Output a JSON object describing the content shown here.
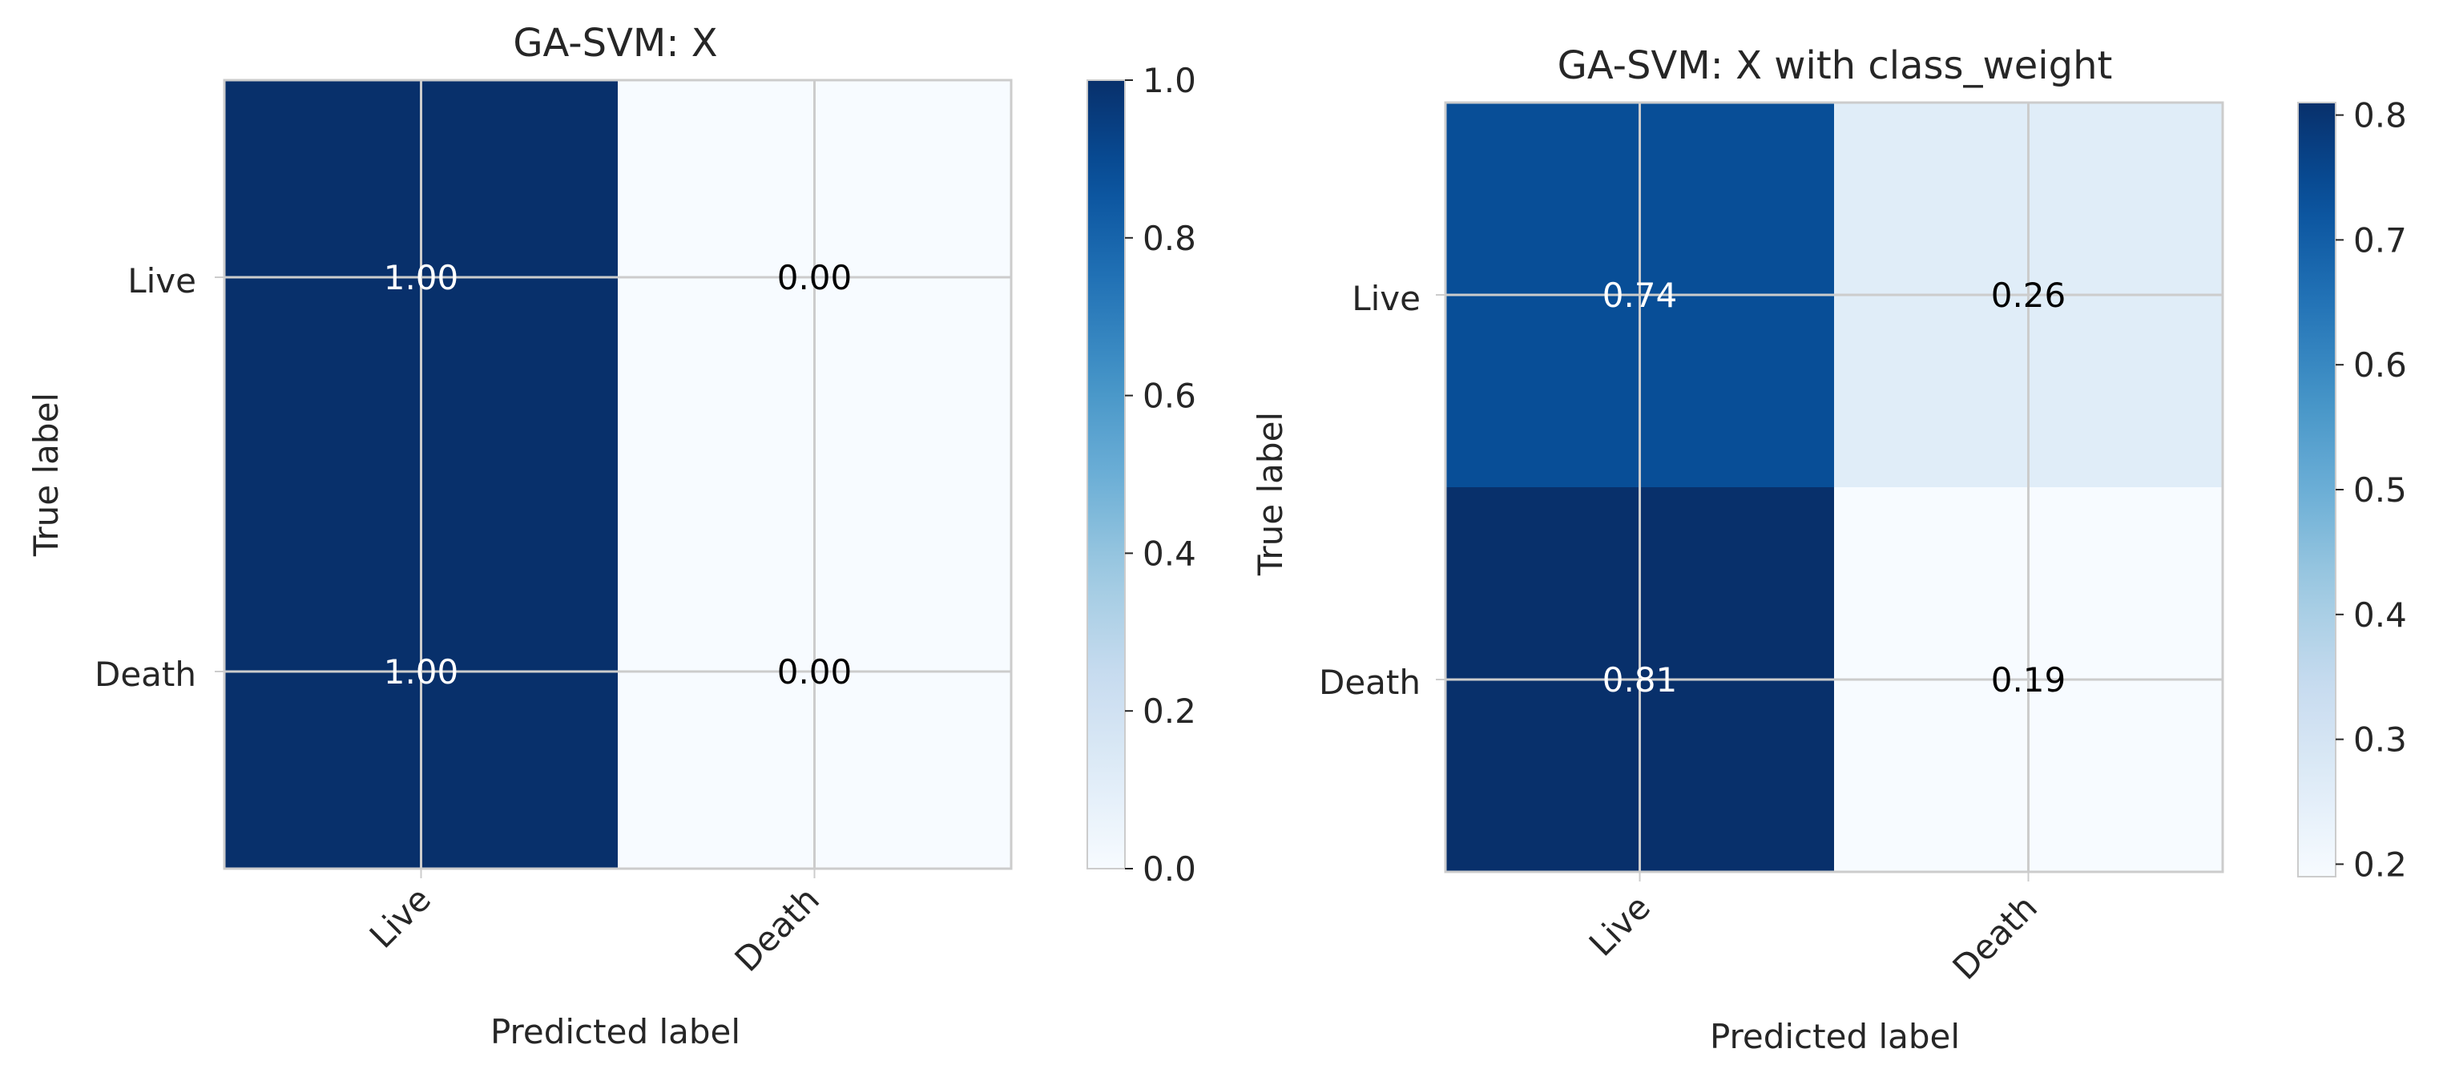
{
  "chart_data": [
    {
      "type": "heatmap",
      "title": "GA-SVM: X",
      "xlabel": "Predicted label",
      "ylabel": "True label",
      "x_categories": [
        "Live",
        "Death"
      ],
      "y_categories": [
        "Live",
        "Death"
      ],
      "values": [
        [
          1.0,
          0.0
        ],
        [
          1.0,
          0.0
        ]
      ],
      "cell_labels": [
        [
          "1.00",
          "0.00"
        ],
        [
          "1.00",
          "0.00"
        ]
      ],
      "colormap": "Blues",
      "colorbar": {
        "range": [
          0.0,
          1.0
        ],
        "ticks": [
          0.0,
          0.2,
          0.4,
          0.6,
          0.8,
          1.0
        ],
        "tick_labels": [
          "0.0",
          "0.2",
          "0.4",
          "0.6",
          "0.8",
          "1.0"
        ]
      },
      "grid": true
    },
    {
      "type": "heatmap",
      "title": "GA-SVM: X with class_weight",
      "xlabel": "Predicted label",
      "ylabel": "True label",
      "x_categories": [
        "Live",
        "Death"
      ],
      "y_categories": [
        "Live",
        "Death"
      ],
      "values": [
        [
          0.74,
          0.26
        ],
        [
          0.81,
          0.19
        ]
      ],
      "cell_labels": [
        [
          "0.74",
          "0.26"
        ],
        [
          "0.81",
          "0.19"
        ]
      ],
      "colormap": "Blues",
      "colorbar": {
        "range": [
          0.19,
          0.81
        ],
        "ticks": [
          0.2,
          0.3,
          0.4,
          0.5,
          0.6,
          0.7,
          0.8
        ],
        "tick_labels": [
          "0.2",
          "0.3",
          "0.4",
          "0.5",
          "0.6",
          "0.7",
          "0.8"
        ]
      },
      "grid": true
    }
  ],
  "colors": {
    "text": "#262626",
    "grid": "#cccccc",
    "frame": "#cccccc",
    "label_on_dark": "#ffffff",
    "label_on_light": "#000000",
    "blues": [
      "#f7fbff",
      "#deebf7",
      "#c6dbef",
      "#9ecae1",
      "#6baed6",
      "#4292c6",
      "#2171b5",
      "#08519c",
      "#08306b"
    ]
  }
}
